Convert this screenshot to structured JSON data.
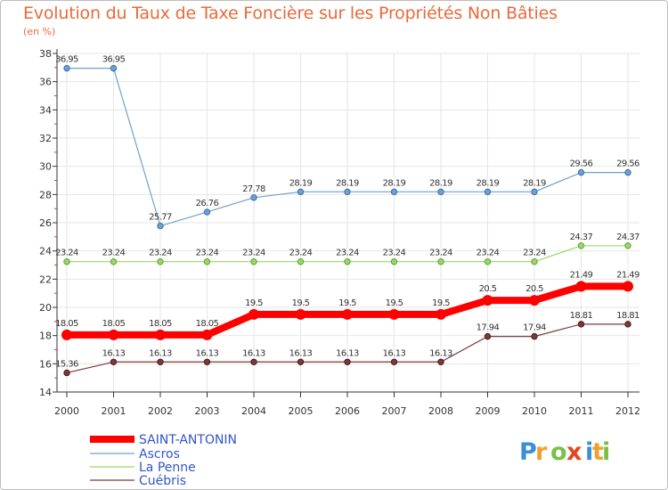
{
  "chart_data": {
    "type": "line",
    "title": "Evolution du Taux de Taxe Foncière sur les Propriétés Non Bâties",
    "subtitle": "(en %)",
    "xlabel": "",
    "ylabel": "",
    "categories": [
      "2000",
      "2001",
      "2002",
      "2003",
      "2004",
      "2005",
      "2006",
      "2007",
      "2008",
      "2009",
      "2010",
      "2011",
      "2012"
    ],
    "ylim": [
      14,
      38
    ],
    "yticks": [
      14,
      16,
      18,
      20,
      22,
      24,
      26,
      28,
      30,
      32,
      34,
      36,
      38
    ],
    "grid": true,
    "legend_position": "bottom-left",
    "series": [
      {
        "name": "SAINT-ANTONIN",
        "color": "#ff0000",
        "values": [
          18.05,
          18.05,
          18.05,
          18.05,
          19.5,
          19.5,
          19.5,
          19.5,
          19.5,
          20.5,
          20.5,
          21.49,
          21.49
        ],
        "labels": [
          "18.05",
          "18.05",
          "18.05",
          "18.05",
          "19.5",
          "19.5",
          "19.5",
          "19.5",
          "19.5",
          "20.5",
          "20.5",
          "21.49",
          "21.49"
        ]
      },
      {
        "name": "Ascros",
        "color": "#6fa0d0",
        "values": [
          36.95,
          36.95,
          25.77,
          26.76,
          27.78,
          28.19,
          28.19,
          28.19,
          28.19,
          28.19,
          28.19,
          29.56,
          29.56
        ],
        "labels": [
          "36.95",
          "36.95",
          "25.77",
          "26.76",
          "27.78",
          "28.19",
          "28.19",
          "28.19",
          "28.19",
          "28.19",
          "28.19",
          "29.56",
          "29.56"
        ]
      },
      {
        "name": "La Penne",
        "color": "#9ad86a",
        "values": [
          23.24,
          23.24,
          23.24,
          23.24,
          23.24,
          23.24,
          23.24,
          23.24,
          23.24,
          23.24,
          23.24,
          24.37,
          24.37
        ],
        "labels": [
          "23.24",
          "23.24",
          "23.24",
          "23.24",
          "23.24",
          "23.24",
          "23.24",
          "23.24",
          "23.24",
          "23.24",
          "23.24",
          "24.37",
          "24.37"
        ]
      },
      {
        "name": "Cuébris",
        "color": "#7a3a3a",
        "values": [
          15.36,
          16.13,
          16.13,
          16.13,
          16.13,
          16.13,
          16.13,
          16.13,
          16.13,
          17.94,
          17.94,
          18.81,
          18.81
        ],
        "labels": [
          "15.36",
          "16.13",
          "16.13",
          "16.13",
          "16.13",
          "16.13",
          "16.13",
          "16.13",
          "16.13",
          "17.94",
          "17.94",
          "18.81",
          "18.81"
        ]
      }
    ]
  },
  "logo": {
    "letters": [
      "P",
      "r",
      "o",
      "x",
      "i",
      "t",
      "i"
    ],
    "colors": [
      "#3a8fd8",
      "#f0a030",
      "#7ac143",
      "#e8431c",
      "#3a8fd8",
      "#f0a030",
      "#7ac143"
    ]
  }
}
